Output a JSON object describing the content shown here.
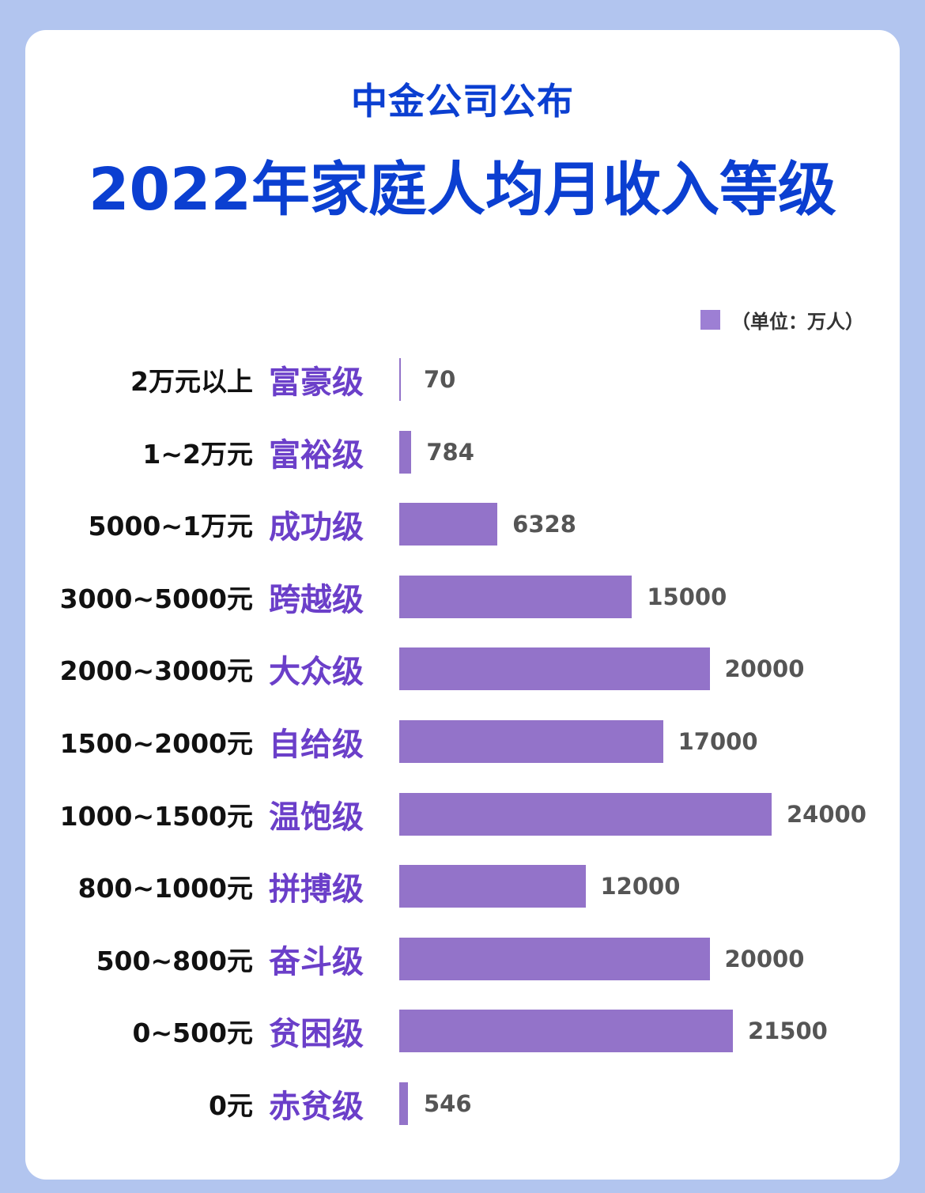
{
  "header": {
    "subtitle": "中金公司公布",
    "title": "2022年家庭人均月收入等级"
  },
  "colors": {
    "background": "#b2c5ef",
    "title": "#0b3fd1",
    "bar": "#9373c9",
    "category": "#6b3fc9"
  },
  "chart_data": {
    "type": "bar",
    "orientation": "horizontal",
    "title": "2022年家庭人均月收入等级",
    "legend": {
      "label": "（单位：万人）",
      "placement": "top-right"
    },
    "categories": [
      "富豪级",
      "富裕级",
      "成功级",
      "跨越级",
      "大众级",
      "自给级",
      "温饱级",
      "拼搏级",
      "奋斗级",
      "贫困级",
      "赤贫级"
    ],
    "ranges": [
      "2万元以上",
      "1~2万元",
      "5000~1万元",
      "3000~5000元",
      "2000~3000元",
      "1500~2000元",
      "1000~1500元",
      "800~1000元",
      "500~800元",
      "0~500元",
      "0元"
    ],
    "values": [
      70,
      784,
      6328,
      15000,
      20000,
      17000,
      24000,
      12000,
      20000,
      21500,
      546
    ],
    "value_labels": [
      "70",
      "784",
      "6328",
      "15000",
      "20000",
      "17000",
      "24000",
      "12000",
      "20000",
      "21500",
      "546"
    ],
    "xlim": [
      0,
      24000
    ],
    "grid": false
  }
}
